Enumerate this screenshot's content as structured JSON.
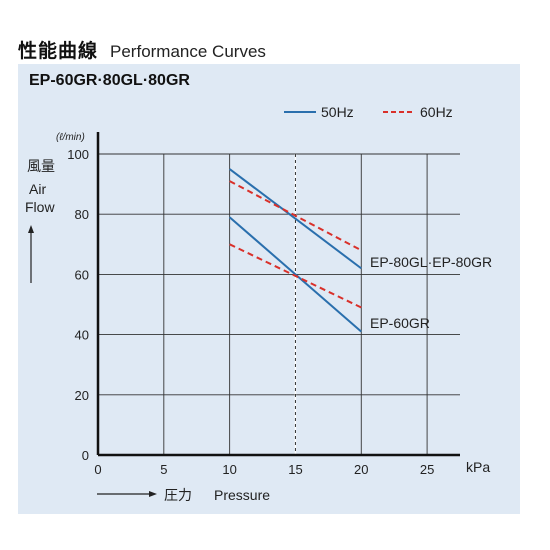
{
  "heading": {
    "jp": "性能曲線",
    "en": "Performance Curves"
  },
  "model_title": "EP-60GR·80GL·80GR",
  "chart_data": {
    "type": "line",
    "xlabel_jp": "圧力",
    "xlabel_en": "Pressure",
    "xunit": "kPa",
    "ylabel_jp": "風量",
    "ylabel_en": [
      "Air",
      "Flow"
    ],
    "yunit": "(ℓ/min)",
    "xlim": [
      0,
      27.5
    ],
    "ylim": [
      0,
      100
    ],
    "xticks": [
      0,
      5,
      10,
      15,
      20,
      25
    ],
    "yticks": [
      0,
      20,
      40,
      60,
      80,
      100
    ],
    "grid": true,
    "legend": {
      "position": "top-right",
      "entries": [
        {
          "name": "50Hz",
          "color": "#2a6fad",
          "dash": "solid"
        },
        {
          "name": "60Hz",
          "color": "#d9302a",
          "dash": "dashed"
        }
      ]
    },
    "reference_line_x": 15,
    "series": [
      {
        "model": "EP-80GL·EP-80GR",
        "freq": "50Hz",
        "color": "#2a6fad",
        "dashed": false,
        "x": [
          10,
          20
        ],
        "y": [
          95,
          62
        ]
      },
      {
        "model": "EP-80GL·EP-80GR",
        "freq": "60Hz",
        "color": "#d9302a",
        "dashed": true,
        "x": [
          10,
          20
        ],
        "y": [
          91,
          68
        ]
      },
      {
        "model": "EP-60GR",
        "freq": "50Hz",
        "color": "#2a6fad",
        "dashed": false,
        "x": [
          10,
          20
        ],
        "y": [
          79,
          41
        ]
      },
      {
        "model": "EP-60GR",
        "freq": "60Hz",
        "color": "#d9302a",
        "dashed": true,
        "x": [
          10,
          20
        ],
        "y": [
          70,
          49
        ]
      }
    ],
    "curve_labels": [
      "EP-80GL·EP-80GR",
      "EP-60GR"
    ]
  }
}
